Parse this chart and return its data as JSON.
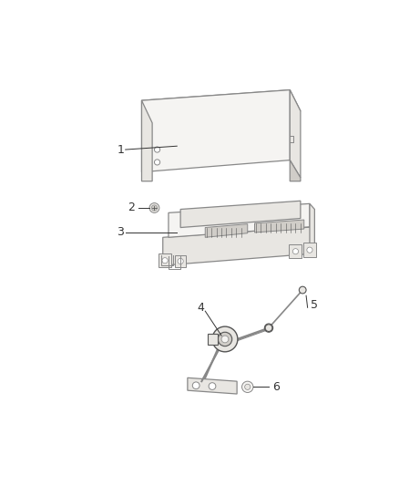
{
  "background_color": "#ffffff",
  "line_color": "#888888",
  "dark_line": "#555555",
  "label_color": "#333333",
  "fill_light": "#f5f4f2",
  "fill_mid": "#e8e6e2",
  "fill_dark": "#d0cdc8",
  "font_size": 9,
  "fig_width": 4.38,
  "fig_height": 5.33,
  "dpi": 100,
  "lw_thin": 0.7,
  "lw_main": 0.9
}
